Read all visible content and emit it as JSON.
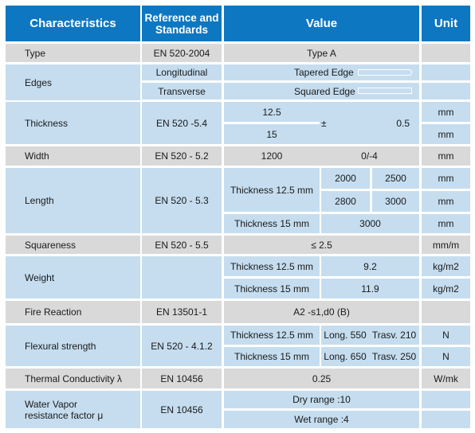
{
  "header": {
    "characteristics": "Characteristics",
    "reference_line1": "Reference and",
    "reference_line2": "Standards",
    "value": "Value",
    "unit": "Unit"
  },
  "rows": {
    "type": {
      "label": "Type",
      "ref": "EN 520-2004",
      "value": "Type A"
    },
    "edges": {
      "label": "Edges",
      "longitudinal": "Longitudinal",
      "transverse": "Transverse",
      "tapered": "Tapered Edge",
      "squared": "Squared Edge"
    },
    "thickness": {
      "label": "Thickness",
      "ref": "EN 520 -5.4",
      "v1": "12.5",
      "v2": "15",
      "pm": "±",
      "tol": "0.5",
      "unit1": "mm",
      "unit2": "mm"
    },
    "width": {
      "label": "Width",
      "ref": "EN 520 - 5.2",
      "v": "1200",
      "tol": "0/-4",
      "unit": "mm"
    },
    "length": {
      "label": "Length",
      "ref": "EN 520 - 5.3",
      "t125": "Thickness 12.5 mm",
      "a": "2000",
      "b": "2500",
      "c": "2800",
      "d": "3000",
      "t15": "Thickness 15 mm",
      "e": "3000",
      "unit1": "mm",
      "unit2": "mm",
      "unit3": "mm"
    },
    "squareness": {
      "label": "Squareness",
      "ref": "EN 520 - 5.5",
      "v": "≤ 2.5",
      "unit": "mm/m"
    },
    "weight": {
      "label": "Weight",
      "t125": "Thickness 12.5 mm",
      "v1": "9.2",
      "unit1": "kg/m2",
      "t15": "Thickness 15 mm",
      "v2": "11.9",
      "unit2": "kg/m2"
    },
    "fire": {
      "label": "Fire Reaction",
      "ref": "EN 13501-1",
      "v": "A2 -s1,d0 (B)"
    },
    "flexural": {
      "label": "Flexural strength",
      "ref": "EN 520 - 4.1.2",
      "t125": "Thickness 12.5 mm",
      "long1": "Long. 550",
      "trasv1": "Trasv. 210",
      "unit1": "N",
      "t15": "Thickness 15 mm",
      "long2": "Long. 650",
      "trasv2": "Trasv. 250",
      "unit2": "N"
    },
    "thermal": {
      "label": "Thermal Conductivity λ",
      "ref": "EN 10456",
      "v": "0.25",
      "unit": "W/mk"
    },
    "vapor": {
      "label": "Water Vapor resistance factor μ",
      "ref": "EN 10456",
      "dry": "Dry range :10",
      "wet": "Wet range :4"
    }
  },
  "colors": {
    "header": "#0e77c2",
    "gray": "#d9d9d9",
    "blue": "#c5ddef"
  }
}
